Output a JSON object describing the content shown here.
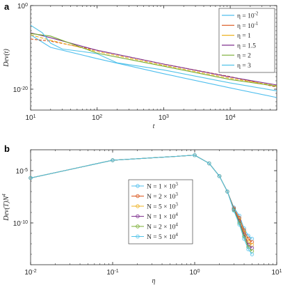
{
  "colors": {
    "c1": "#4dbeee",
    "c2": "#d95319",
    "c3": "#edb120",
    "c4": "#7e2f8e",
    "c5": "#77ac30",
    "c6": "#4fc2e8",
    "axis": "#262626"
  },
  "chart_data": [
    {
      "panel": "a",
      "type": "line",
      "xscale": "log",
      "yscale": "log",
      "xlim": [
        10,
        50000
      ],
      "ylim": [
        1e-25,
        1
      ],
      "xlabel": "t",
      "ylabel": "Dev(t)",
      "xticks": [
        "10^1",
        "10^2",
        "10^3",
        "10^4"
      ],
      "yticks": [
        "10^0",
        "10^-20"
      ],
      "legend_position": "top-right",
      "series": [
        {
          "name": "η = 10^-2",
          "x": [
            10,
            20,
            100,
            1000,
            10000,
            50000
          ],
          "y": [
            1e-07,
            1e-10,
            2e-13,
            5e-17,
            2e-20,
            1e-22
          ]
        },
        {
          "name": "η = 10^-1",
          "x": [
            10,
            20,
            100,
            1000,
            10000,
            50000
          ],
          "y": [
            1e-08,
            3e-09,
            2e-11,
            1e-14,
            1e-17,
            3e-20
          ]
        },
        {
          "name": "η = 1",
          "x": [
            10,
            20,
            100,
            1000,
            10000,
            50000
          ],
          "y": [
            1e-07,
            5e-09,
            1e-11,
            5e-15,
            4e-18,
            6e-20
          ]
        },
        {
          "name": "η = 1.5",
          "x": [
            10,
            20,
            100,
            1000,
            10000,
            50000
          ],
          "y": [
            3e-07,
            2e-08,
            2e-11,
            1e-14,
            8e-18,
            1e-19
          ]
        },
        {
          "name": "η = 2",
          "x": [
            10,
            20,
            100,
            1000,
            10000,
            50000
          ],
          "y": [
            2e-07,
            5e-08,
            4e-12,
            3e-15,
            2e-18,
            5e-20
          ]
        },
        {
          "name": "η = 3",
          "x": [
            10,
            15,
            20,
            30,
            60,
            100,
            200,
            1000,
            10000,
            50000
          ],
          "y": [
            2e-05,
            3e-07,
            1e-09,
            4e-11,
            1e-11,
            3e-12,
            2e-14,
            4e-16,
            3e-19,
            4e-21
          ]
        }
      ]
    },
    {
      "panel": "b",
      "type": "line",
      "xscale": "log",
      "yscale": "log",
      "xlim": [
        0.01,
        10
      ],
      "ylim": [
        1e-14,
        0.001
      ],
      "xlabel": "η",
      "ylabel": "Dev(T)N^4",
      "xticks": [
        "10^-2",
        "10^-1",
        "10^0",
        "10^1"
      ],
      "yticks": [
        "10^-5",
        "10^-10"
      ],
      "legend_position": "center",
      "x": [
        0.01,
        0.1,
        1,
        1.5,
        2,
        2.5,
        3,
        3.5,
        4,
        4.5,
        5
      ],
      "series": [
        {
          "name": "N = 1 × 10^3",
          "y": [
            2e-06,
            0.0001,
            0.0003,
            5e-05,
            3e-06,
            1e-07,
            3e-09,
            5e-10,
            3e-11,
            6e-12,
            3e-12
          ]
        },
        {
          "name": "N = 2 × 10^3",
          "y": [
            2e-06,
            0.0001,
            0.0003,
            5e-05,
            3e-06,
            1e-07,
            2.5e-09,
            3e-10,
            2e-11,
            3e-12,
            1.5e-12
          ]
        },
        {
          "name": "N = 5 × 10^3",
          "y": [
            2e-06,
            0.0001,
            0.0003,
            5e-05,
            3e-06,
            1e-07,
            2e-09,
            2e-10,
            1.2e-11,
            1.5e-12,
            8e-13
          ]
        },
        {
          "name": "N = 1 × 10^4",
          "y": [
            2e-06,
            0.0001,
            0.0003,
            5e-05,
            3e-06,
            1e-07,
            2e-09,
            1.5e-10,
            8e-12,
            8e-13,
            4e-13
          ]
        },
        {
          "name": "N = 2 × 10^4",
          "y": [
            2e-06,
            0.0001,
            0.0003,
            5e-05,
            3e-06,
            1e-07,
            1.8e-09,
            1e-10,
            5e-12,
            5e-13,
            2e-13
          ]
        },
        {
          "name": "N = 5 × 10^4",
          "y": [
            2e-06,
            0.0001,
            0.0003,
            5e-05,
            3e-06,
            1e-07,
            1.5e-09,
            7e-11,
            3e-12,
            3e-13,
            1e-13
          ]
        }
      ]
    }
  ]
}
